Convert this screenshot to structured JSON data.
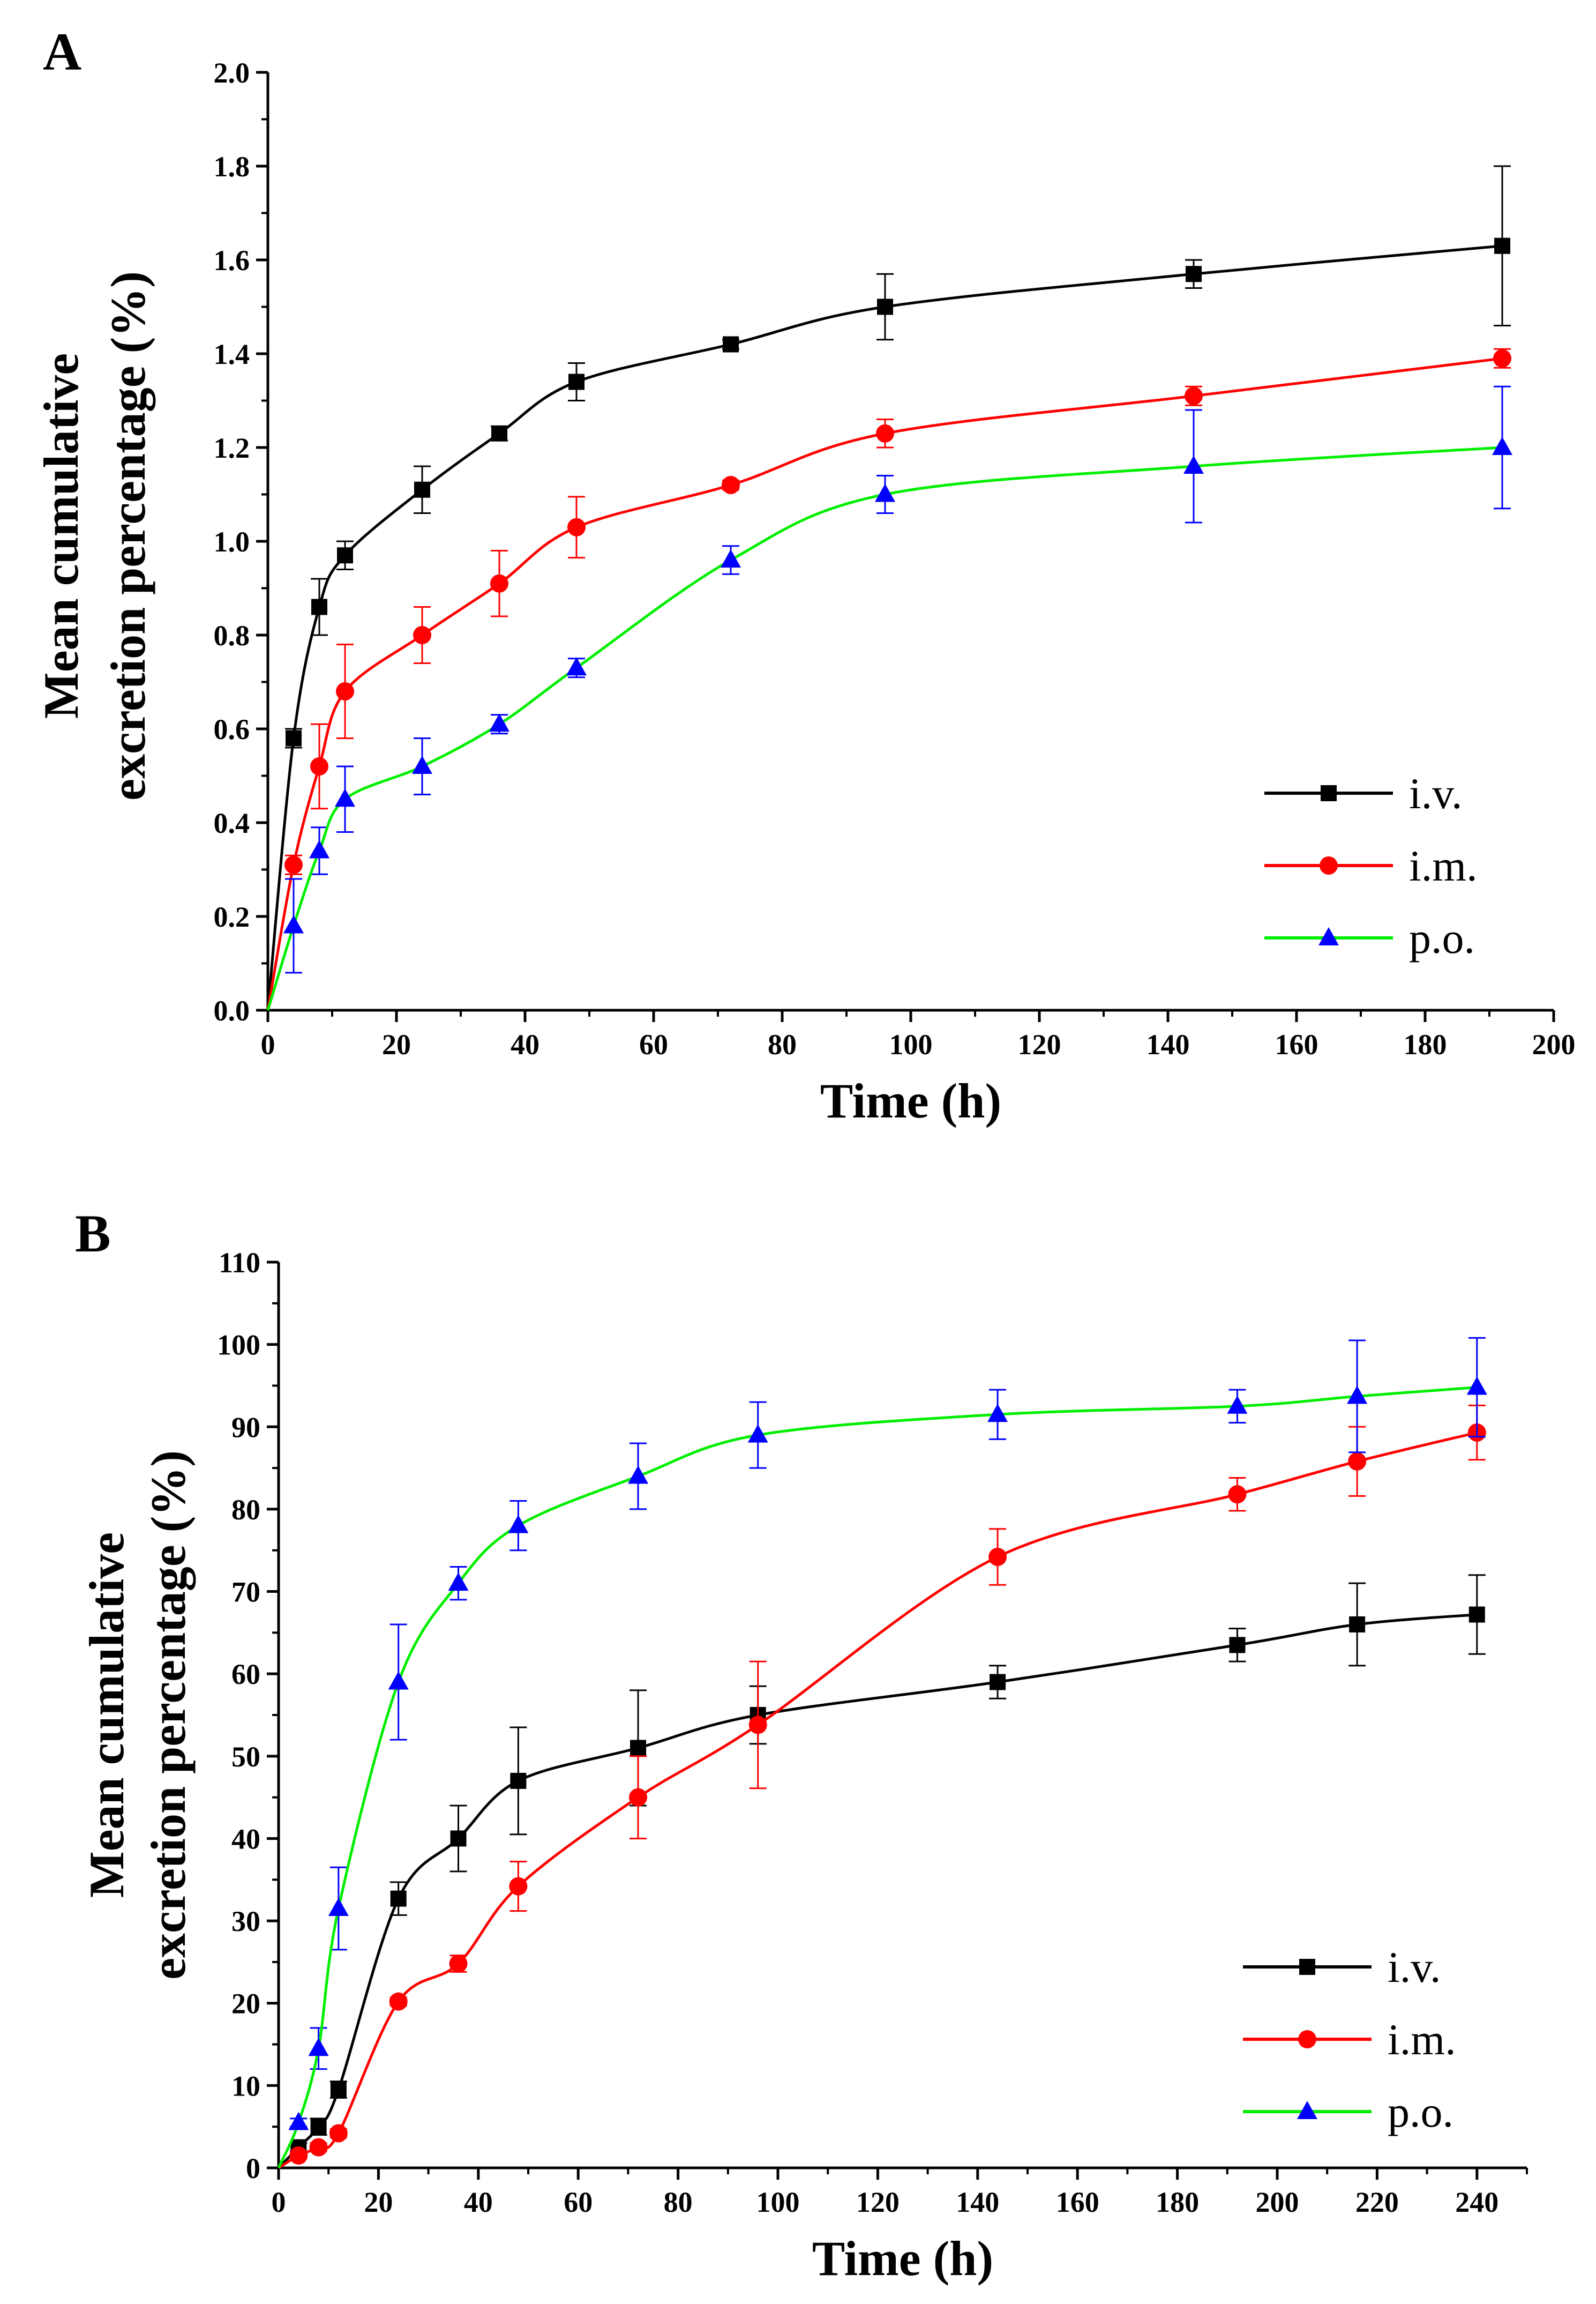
{
  "chart_data": [
    {
      "panel": "A",
      "type": "line",
      "title": "",
      "xlabel": "Time (h)",
      "ylabel": [
        "Mean cumulative",
        "excretion percentage (%)"
      ],
      "xlim": [
        0,
        200
      ],
      "ylim": [
        0,
        2.0
      ],
      "xticks": [
        0,
        20,
        40,
        60,
        80,
        100,
        120,
        140,
        160,
        180,
        200
      ],
      "yticks": [
        0.0,
        0.2,
        0.4,
        0.6,
        0.8,
        1.0,
        1.2,
        1.4,
        1.6,
        1.8,
        2.0
      ],
      "ytick_labels": [
        "0.0",
        "0.2",
        "0.4",
        "0.6",
        "0.8",
        "1.0",
        "1.2",
        "1.4",
        "1.6",
        "1.8",
        "2.0"
      ],
      "legend_position": "lower-right",
      "series": [
        {
          "name": "i.v.",
          "marker": "square",
          "color": "#000000",
          "x": [
            0,
            4,
            8,
            12,
            24,
            36,
            48,
            72,
            96,
            144,
            192
          ],
          "y": [
            0,
            0.58,
            0.86,
            0.97,
            1.11,
            1.23,
            1.34,
            1.42,
            1.5,
            1.57,
            1.63
          ],
          "err": [
            0,
            0.02,
            0.06,
            0.03,
            0.05,
            0.015,
            0.04,
            0.01,
            0.07,
            0.03,
            0.17
          ]
        },
        {
          "name": "i.m.",
          "marker": "circle",
          "color": "#ff0000",
          "x": [
            0,
            4,
            8,
            12,
            24,
            36,
            48,
            72,
            96,
            144,
            192
          ],
          "y": [
            0,
            0.31,
            0.52,
            0.68,
            0.8,
            0.91,
            1.03,
            1.12,
            1.23,
            1.31,
            1.39
          ],
          "err": [
            0,
            0.02,
            0.09,
            0.1,
            0.06,
            0.07,
            0.065,
            0.01,
            0.03,
            0.02,
            0.02
          ]
        },
        {
          "name": "p.o.",
          "marker": "triangle",
          "color": "#00ee00",
          "errcolor": "#0000ff",
          "x": [
            0,
            4,
            8,
            12,
            24,
            36,
            48,
            72,
            96,
            144,
            192
          ],
          "y": [
            0,
            0.18,
            0.34,
            0.45,
            0.52,
            0.61,
            0.73,
            0.96,
            1.1,
            1.16,
            1.2
          ],
          "err": [
            0,
            0.1,
            0.05,
            0.07,
            0.06,
            0.02,
            0.02,
            0.03,
            0.04,
            0.12,
            0.13
          ]
        }
      ]
    },
    {
      "panel": "B",
      "type": "line",
      "title": "",
      "xlabel": "Time (h)",
      "ylabel": [
        "Mean cumulative",
        "excretion percentage (%)"
      ],
      "xlim": [
        0,
        250
      ],
      "ylim": [
        0,
        110
      ],
      "xticks": [
        0,
        20,
        40,
        60,
        80,
        100,
        120,
        140,
        160,
        180,
        200,
        220,
        240
      ],
      "yticks": [
        0,
        10,
        20,
        30,
        40,
        50,
        60,
        70,
        80,
        90,
        100,
        110
      ],
      "ytick_labels": [
        "0",
        "10",
        "20",
        "30",
        "40",
        "50",
        "60",
        "70",
        "80",
        "90",
        "100",
        "110"
      ],
      "legend_position": "lower-right",
      "series": [
        {
          "name": "i.v.",
          "marker": "square",
          "color": "#000000",
          "x": [
            0,
            4,
            8,
            12,
            24,
            36,
            48,
            72,
            96,
            144,
            192,
            216,
            240
          ],
          "y": [
            0,
            2.5,
            5,
            9.5,
            32.7,
            40,
            47,
            51,
            55,
            59,
            63.5,
            66,
            67.2
          ],
          "err": [
            0,
            0.5,
            1,
            1.0,
            2,
            4,
            6.5,
            7,
            3.5,
            2,
            2,
            5,
            4.8
          ]
        },
        {
          "name": "i.m.",
          "marker": "circle",
          "color": "#ff0000",
          "x": [
            0,
            4,
            8,
            12,
            24,
            36,
            48,
            72,
            96,
            144,
            192,
            216,
            240
          ],
          "y": [
            0,
            1.5,
            2.5,
            4.2,
            20.2,
            24.8,
            34.2,
            45,
            53.8,
            74.2,
            81.8,
            85.8,
            89.3
          ],
          "err": [
            0,
            0.3,
            0.5,
            0.5,
            0.5,
            1.0,
            3,
            5,
            7.7,
            3.4,
            2,
            4.2,
            3.3
          ]
        },
        {
          "name": "p.o.",
          "marker": "triangle",
          "color": "#00ee00",
          "errcolor": "#0000ff",
          "x": [
            0,
            4,
            8,
            12,
            24,
            36,
            48,
            72,
            96,
            144,
            192,
            216,
            240
          ],
          "y": [
            0,
            5.5,
            14.5,
            31.5,
            59,
            71,
            78,
            84,
            89,
            91.5,
            92.5,
            93.7,
            94.8
          ],
          "err": [
            0,
            0.5,
            2.5,
            5,
            7,
            2,
            3,
            4,
            4,
            3,
            2,
            6.8,
            6
          ]
        }
      ]
    }
  ]
}
